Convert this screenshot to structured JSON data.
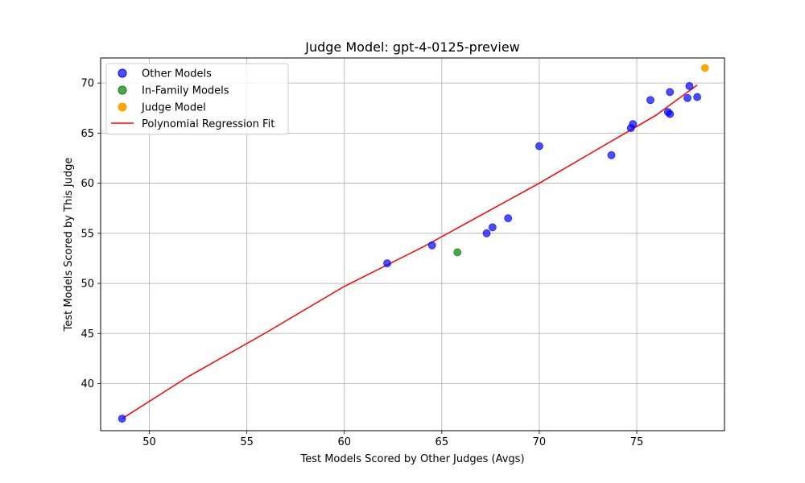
{
  "chart_data": {
    "type": "scatter",
    "title": "Judge Model: gpt-4-0125-preview",
    "xlabel": "Test Models Scored by Other Judges (Avgs)",
    "ylabel": "Test Models Scored by This Judge",
    "xlim": [
      47.5,
      79.5
    ],
    "ylim": [
      35.3,
      72.5
    ],
    "xticks": [
      50,
      55,
      60,
      65,
      70,
      75
    ],
    "yticks": [
      40,
      45,
      50,
      55,
      60,
      65,
      70
    ],
    "grid": true,
    "legend_position": "top-left",
    "series": [
      {
        "name": "Other Models",
        "color": "#0000ff",
        "points": [
          [
            48.6,
            36.5
          ],
          [
            62.2,
            52.0
          ],
          [
            64.5,
            53.8
          ],
          [
            67.3,
            55.0
          ],
          [
            67.6,
            55.6
          ],
          [
            68.4,
            56.5
          ],
          [
            70.0,
            63.7
          ],
          [
            73.7,
            62.8
          ],
          [
            74.7,
            65.5
          ],
          [
            74.8,
            65.9
          ],
          [
            75.7,
            68.3
          ],
          [
            76.6,
            67.1
          ],
          [
            76.7,
            66.9
          ],
          [
            76.7,
            69.1
          ],
          [
            77.6,
            68.5
          ],
          [
            77.7,
            69.7
          ],
          [
            78.1,
            68.6
          ]
        ]
      },
      {
        "name": "In-Family Models",
        "color": "#008000",
        "points": [
          [
            65.8,
            53.1
          ]
        ]
      },
      {
        "name": "Judge Model",
        "color": "#ffa500",
        "points": [
          [
            78.5,
            71.5
          ]
        ]
      }
    ],
    "fit": {
      "name": "Polynomial Regression Fit",
      "color": "#ff0000",
      "points": [
        [
          48.6,
          36.5
        ],
        [
          52.0,
          40.7
        ],
        [
          56.0,
          45.1
        ],
        [
          60.0,
          49.7
        ],
        [
          64.0,
          53.6
        ],
        [
          67.0,
          56.8
        ],
        [
          70.0,
          60.0
        ],
        [
          73.0,
          63.4
        ],
        [
          76.0,
          66.8
        ],
        [
          78.1,
          69.8
        ]
      ]
    }
  }
}
